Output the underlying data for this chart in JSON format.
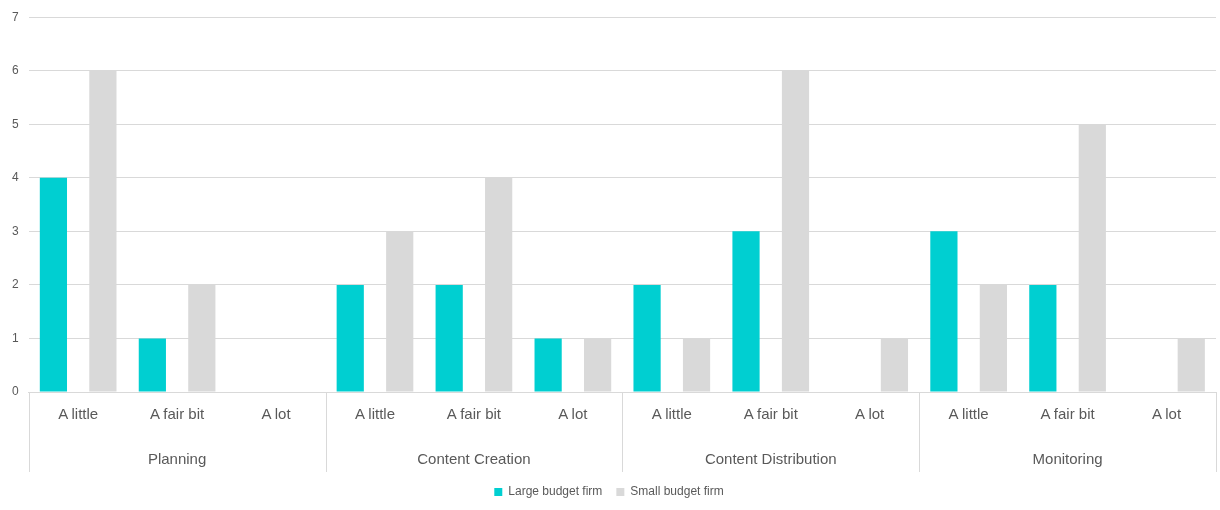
{
  "chart_data": {
    "type": "bar",
    "categories": [
      "A little",
      "A fair bit",
      "A lot",
      "A little",
      "A fair bit",
      "A lot",
      "A little",
      "A fair bit",
      "A lot",
      "A little",
      "A fair bit",
      "A lot"
    ],
    "annotations": [
      "Planning",
      "Content Creation",
      "Content Distribution",
      "Monitoring"
    ],
    "series": [
      {
        "name": "Large budget firm",
        "color": "#00cfd1",
        "values": [
          4,
          1,
          0,
          2,
          2,
          1,
          2,
          3,
          0,
          3,
          2,
          0
        ]
      },
      {
        "name": "Small budget firm",
        "color": "#d9d9d9",
        "values": [
          6,
          2,
          0,
          3,
          4,
          1,
          1,
          6,
          1,
          2,
          5,
          1
        ]
      }
    ],
    "ylim": [
      0,
      7
    ],
    "yticks": [
      0,
      1,
      2,
      3,
      4,
      5,
      6,
      7
    ],
    "grid": "y",
    "legend": "bottom"
  }
}
